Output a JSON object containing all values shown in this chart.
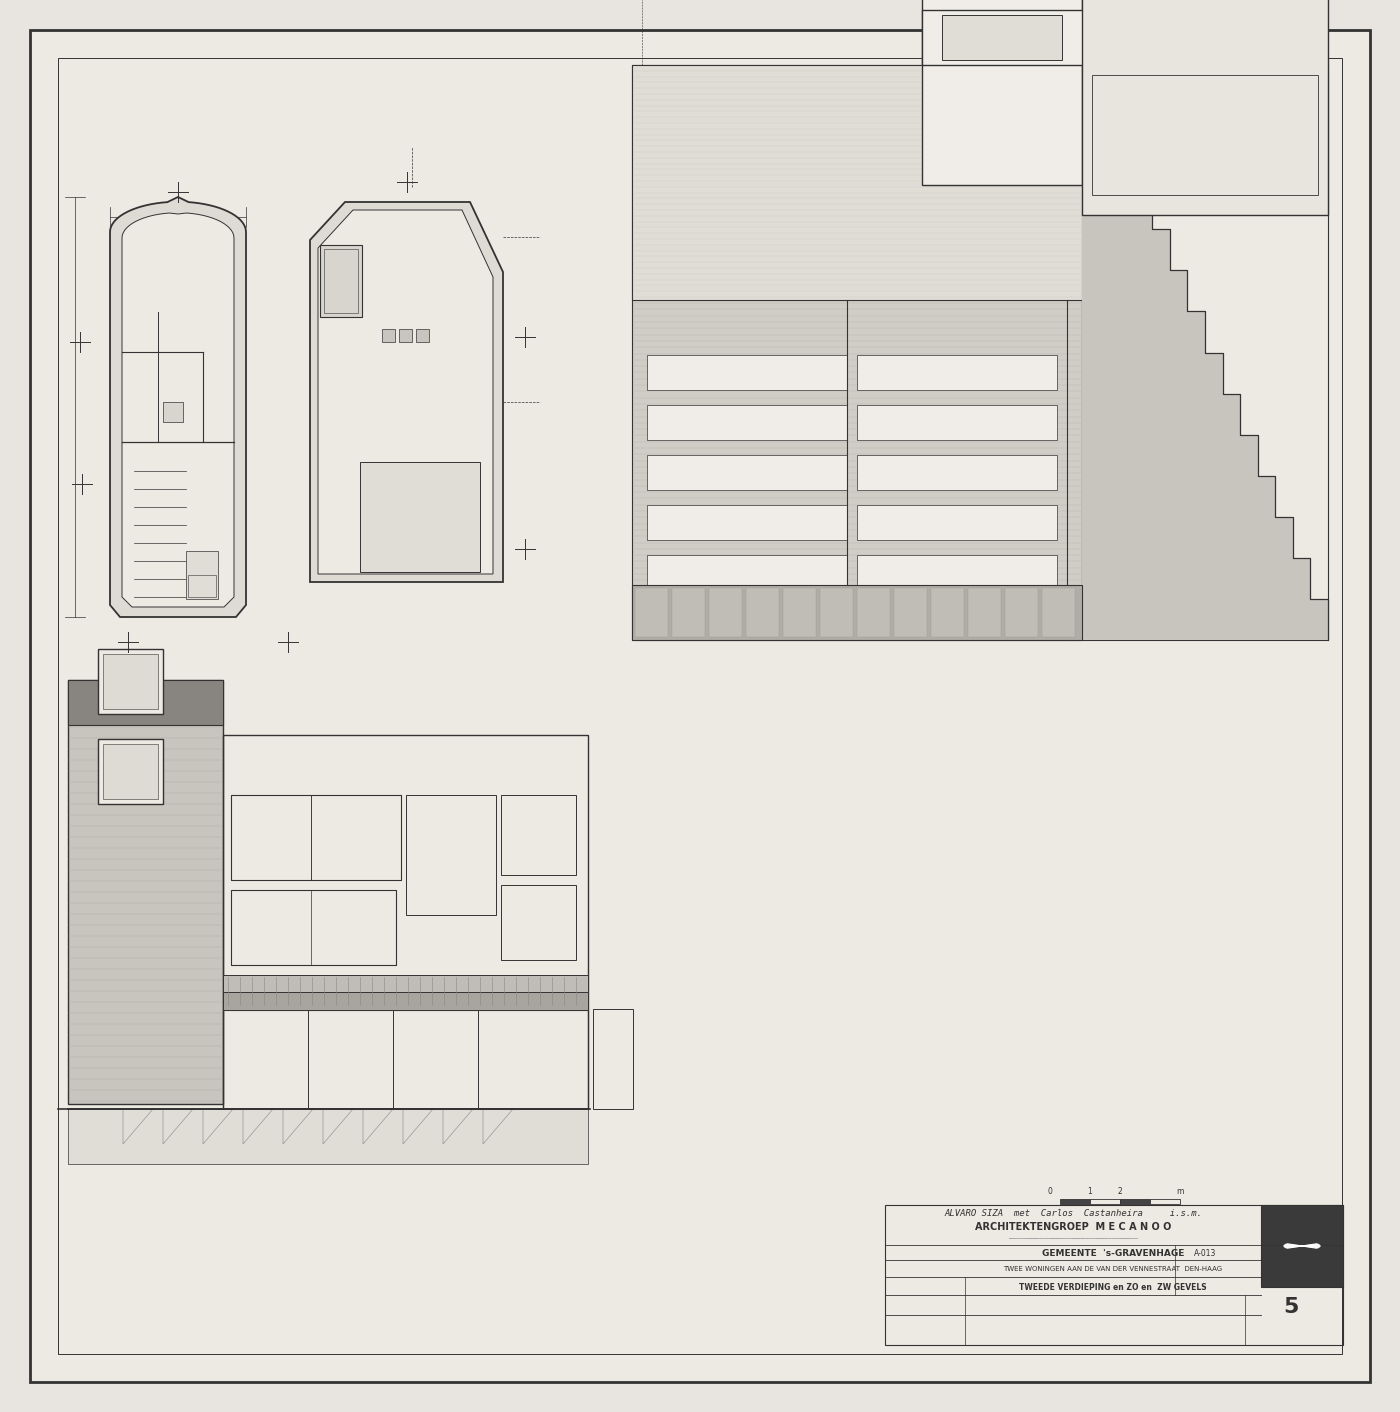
{
  "background_color": "#e8e4df",
  "paper_color": "#ede9e3",
  "line_color": "#555555",
  "dark_color": "#333333",
  "medium_gray": "#888888",
  "light_gray": "#bbbbbb",
  "hatching_color": "#999999",
  "title_text_1": "ALVARO SIZA  met  Carlos  Castanheira     i.s.m.",
  "title_text_2": "ARCHITEKTENGROEP  M E C A N O O",
  "label_gemeente": "GEMEENTE  's-GRAVENHAGE",
  "label_project": "TWEE WONINGEN AAN DE VAN DER VENNESTRAAT  DEN-HAAG",
  "label_drawing": "TWEEDE VERDIEPING en ZO en  ZW GEVELS",
  "drawing_number": "5",
  "ref_number": "A-013"
}
